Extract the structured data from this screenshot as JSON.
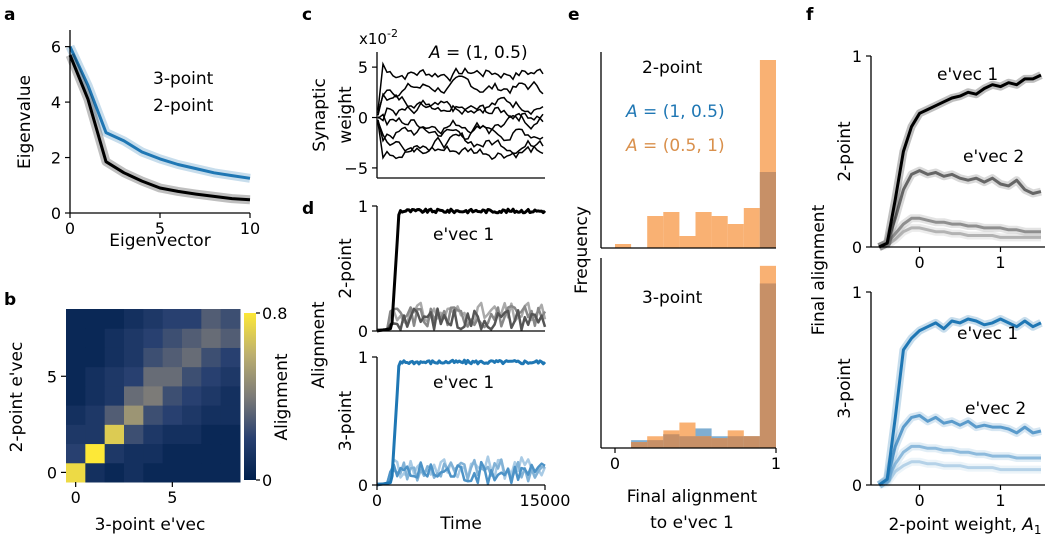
{
  "colors": {
    "black": "#000000",
    "blue": "#1f77b4",
    "lightblue": "#82b2d6",
    "orange": "#f8a35a",
    "histblue": "#7faed2"
  },
  "panels": {
    "a": {
      "label": "a"
    },
    "b": {
      "label": "b"
    },
    "c": {
      "label": "c"
    },
    "d": {
      "label": "d"
    },
    "e": {
      "label": "e"
    },
    "f": {
      "label": "f"
    }
  },
  "chart_data": [
    {
      "id": "a",
      "type": "line",
      "xlabel": "Eigenvector",
      "ylabel": "Eigenvalue",
      "xlim": [
        0,
        10
      ],
      "ylim": [
        0,
        6.6
      ],
      "xticks": [
        {
          "v": 0,
          "label": "0"
        },
        {
          "v": 5,
          "label": "5"
        },
        {
          "v": 10,
          "label": "10"
        }
      ],
      "yticks": [
        {
          "v": 0,
          "label": "0"
        },
        {
          "v": 2,
          "label": "2"
        },
        {
          "v": 4,
          "label": "4"
        },
        {
          "v": 6,
          "label": "6"
        }
      ],
      "series": [
        {
          "name": "3-point",
          "color": "#1f77b4",
          "x": [
            0,
            1,
            2,
            3,
            4,
            5,
            6,
            7,
            8,
            9,
            10
          ],
          "y": [
            6.0,
            4.6,
            2.9,
            2.6,
            2.2,
            1.95,
            1.75,
            1.6,
            1.45,
            1.35,
            1.25
          ]
        },
        {
          "name": "2-point",
          "color": "#000000",
          "x": [
            0,
            1,
            2,
            3,
            4,
            5,
            6,
            7,
            8,
            9,
            10
          ],
          "y": [
            5.7,
            4.1,
            1.85,
            1.45,
            1.15,
            0.9,
            0.78,
            0.68,
            0.6,
            0.52,
            0.48
          ]
        }
      ]
    },
    {
      "id": "b",
      "type": "heatmap",
      "xlabel": "3-point e'vec",
      "ylabel": "2-point e'vec",
      "colorbar_label": "Alignment",
      "xticks": [
        {
          "v": 0,
          "label": "0"
        },
        {
          "v": 5,
          "label": "5"
        }
      ],
      "yticks": [
        {
          "v": 0,
          "label": "0"
        },
        {
          "v": 5,
          "label": "5"
        }
      ],
      "colorbar_ticks": [
        {
          "v": 0,
          "label": "0"
        },
        {
          "v": 0.8,
          "label": "0.8"
        }
      ],
      "vmax": 0.8,
      "matrix_rows_y0_to_y8": [
        [
          0.75,
          0.1,
          0.05,
          0.1,
          0.05,
          0.05,
          0.05,
          0.05,
          0.05
        ],
        [
          0.2,
          0.8,
          0.15,
          0.1,
          0.1,
          0.05,
          0.05,
          0.05,
          0.05
        ],
        [
          0.15,
          0.15,
          0.7,
          0.25,
          0.15,
          0.1,
          0.1,
          0.05,
          0.05
        ],
        [
          0.1,
          0.15,
          0.3,
          0.5,
          0.25,
          0.2,
          0.15,
          0.1,
          0.1
        ],
        [
          0.05,
          0.1,
          0.15,
          0.35,
          0.4,
          0.25,
          0.2,
          0.15,
          0.1
        ],
        [
          0.05,
          0.1,
          0.15,
          0.2,
          0.35,
          0.35,
          0.25,
          0.2,
          0.15
        ],
        [
          0.05,
          0.05,
          0.1,
          0.15,
          0.25,
          0.3,
          0.35,
          0.25,
          0.2
        ],
        [
          0.05,
          0.05,
          0.1,
          0.15,
          0.2,
          0.25,
          0.3,
          0.35,
          0.3
        ],
        [
          0.05,
          0.05,
          0.05,
          0.1,
          0.15,
          0.2,
          0.2,
          0.3,
          0.25
        ]
      ]
    },
    {
      "id": "c",
      "type": "line",
      "ylabel_lines": [
        "Synaptic",
        "weight"
      ],
      "scale_label": "x10",
      "scale_exp": "-2",
      "annotation": "A = (1, 0.5)",
      "ylim": [
        -6,
        6.5
      ],
      "yticks": [
        {
          "v": -5,
          "label": "−5"
        },
        {
          "v": 0,
          "label": "0"
        },
        {
          "v": 5,
          "label": "5"
        }
      ],
      "series_levels": [
        4.5,
        3.0,
        1.5,
        0.5,
        -0.5,
        -1.5,
        -2.5,
        -3.2
      ]
    },
    {
      "id": "d",
      "type": "line",
      "ylabel": "Alignment",
      "xlabel": "Time",
      "xticks": [
        {
          "v": 0,
          "label": "0"
        },
        {
          "v": 15000,
          "label": "15000"
        }
      ],
      "subplots": [
        {
          "name": "2-point",
          "annotation": "e'vec 1",
          "yticks": [
            {
              "v": 0,
              "label": "0"
            },
            {
              "v": 1,
              "label": "1"
            }
          ],
          "colors": [
            "#000000",
            "#555555",
            "#888888",
            "#aaaaaa"
          ]
        },
        {
          "name": "3-point",
          "annotation": "e'vec 1",
          "yticks": [
            {
              "v": 0,
              "label": "0"
            },
            {
              "v": 1,
              "label": "1"
            }
          ],
          "colors": [
            "#1f77b4",
            "#4d93c7",
            "#82b2d6",
            "#a9cbe5"
          ]
        }
      ]
    },
    {
      "id": "e",
      "type": "bar",
      "ylabel": "Frequency",
      "xlabel_lines": [
        "Final alignment",
        "to e'vec 1"
      ],
      "xticks": [
        {
          "v": 0,
          "label": "0"
        },
        {
          "v": 1,
          "label": "1"
        }
      ],
      "legend": [
        {
          "text": "A = (1, 0.5)",
          "color": "#1f77b4"
        },
        {
          "text": "A = (0.5, 1)",
          "color": "#d9904c"
        }
      ],
      "bin_edges": [
        0,
        0.1,
        0.2,
        0.3,
        0.4,
        0.5,
        0.6,
        0.7,
        0.8,
        0.9,
        1.0
      ],
      "subplots": [
        {
          "name": "2-point",
          "blue": [
            0,
            0,
            0,
            0,
            0,
            0,
            0,
            0,
            0,
            0.19
          ],
          "orange": [
            0.01,
            0,
            0.08,
            0.09,
            0.03,
            0.09,
            0.08,
            0.06,
            0.1,
            0.47
          ]
        },
        {
          "name": "3-point",
          "blue": [
            0,
            0.04,
            0.04,
            0.07,
            0.06,
            0.1,
            0.06,
            0.06,
            0.06,
            0.84
          ],
          "orange": [
            0,
            0.03,
            0.06,
            0.09,
            0.13,
            0.06,
            0.05,
            0.09,
            0.06,
            0.93
          ]
        }
      ]
    },
    {
      "id": "f",
      "type": "line",
      "ylabel": "Final alignment",
      "xlabel": "2-point weight, A",
      "xlabel_sub": "1",
      "xlim": [
        -0.6,
        1.55
      ],
      "xticks": [
        {
          "v": 0,
          "label": "0"
        },
        {
          "v": 1,
          "label": "1"
        }
      ],
      "x": [
        -0.5,
        -0.4,
        -0.3,
        -0.2,
        -0.1,
        0.0,
        0.1,
        0.2,
        0.3,
        0.4,
        0.5,
        0.6,
        0.7,
        0.8,
        0.9,
        1.0,
        1.1,
        1.2,
        1.3,
        1.4,
        1.5
      ],
      "subplots": [
        {
          "name": "2-point",
          "yticks": [
            {
              "v": 0,
              "label": "0"
            },
            {
              "v": 1,
              "label": "1"
            }
          ],
          "series": [
            {
              "name": "e'vec 1",
              "color": "#000000",
              "y": [
                0,
                0.02,
                0.25,
                0.5,
                0.63,
                0.7,
                0.72,
                0.74,
                0.76,
                0.78,
                0.79,
                0.81,
                0.8,
                0.83,
                0.85,
                0.84,
                0.86,
                0.85,
                0.88,
                0.88,
                0.9
              ]
            },
            {
              "name": "e'vec 2",
              "color": "#666666",
              "y": [
                0,
                0.02,
                0.15,
                0.3,
                0.38,
                0.4,
                0.38,
                0.39,
                0.37,
                0.38,
                0.36,
                0.35,
                0.36,
                0.34,
                0.36,
                0.33,
                0.32,
                0.35,
                0.3,
                0.28,
                0.29
              ]
            },
            {
              "name": "",
              "color": "#8f8f8f",
              "y": [
                0,
                0.02,
                0.07,
                0.12,
                0.15,
                0.15,
                0.14,
                0.13,
                0.13,
                0.12,
                0.12,
                0.11,
                0.11,
                0.1,
                0.1,
                0.1,
                0.09,
                0.09,
                0.08,
                0.08,
                0.08
              ]
            },
            {
              "name": "",
              "color": "#b3b3b3",
              "y": [
                0,
                0.01,
                0.04,
                0.08,
                0.1,
                0.1,
                0.09,
                0.08,
                0.08,
                0.07,
                0.07,
                0.06,
                0.06,
                0.06,
                0.06,
                0.05,
                0.05,
                0.05,
                0.05,
                0.05,
                0.05
              ]
            }
          ]
        },
        {
          "name": "3-point",
          "yticks": [
            {
              "v": 0,
              "label": "0"
            },
            {
              "v": 1,
              "label": "1"
            }
          ],
          "series": [
            {
              "name": "e'vec 1",
              "color": "#1f77b4",
              "y": [
                0,
                0.03,
                0.35,
                0.7,
                0.76,
                0.8,
                0.82,
                0.84,
                0.81,
                0.85,
                0.84,
                0.86,
                0.85,
                0.83,
                0.84,
                0.86,
                0.84,
                0.82,
                0.85,
                0.82,
                0.84
              ]
            },
            {
              "name": "e'vec 2",
              "color": "#5b9bcb",
              "y": [
                0,
                0.03,
                0.2,
                0.3,
                0.35,
                0.36,
                0.33,
                0.35,
                0.32,
                0.33,
                0.31,
                0.33,
                0.3,
                0.31,
                0.3,
                0.3,
                0.29,
                0.27,
                0.3,
                0.27,
                0.28
              ]
            },
            {
              "name": "",
              "color": "#8dbadc",
              "y": [
                0,
                0.02,
                0.11,
                0.17,
                0.2,
                0.2,
                0.19,
                0.19,
                0.18,
                0.18,
                0.17,
                0.17,
                0.16,
                0.16,
                0.15,
                0.15,
                0.15,
                0.14,
                0.14,
                0.14,
                0.14
              ]
            },
            {
              "name": "",
              "color": "#b5d2e8",
              "y": [
                0,
                0.01,
                0.07,
                0.1,
                0.12,
                0.12,
                0.11,
                0.11,
                0.1,
                0.1,
                0.1,
                0.09,
                0.09,
                0.09,
                0.09,
                0.08,
                0.08,
                0.08,
                0.08,
                0.08,
                0.08
              ]
            }
          ]
        }
      ]
    }
  ]
}
